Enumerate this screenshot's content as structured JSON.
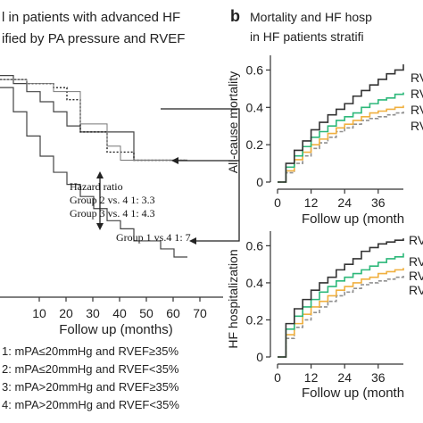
{
  "panel_a": {
    "title_line1": "l in patients with advanced HF",
    "title_line2": "ified by PA pressure and RVEF",
    "xlabel": "Follow up (months)",
    "hazard": {
      "heading": "Hazard ratio",
      "line1": "Group 2 vs. 4   1: 3.3",
      "line2": "Group 3 vs. 4   1: 4.3",
      "line3": "Group 1 vs.4   1: 7"
    },
    "legend": [
      "1: mPA≤20mmHg and RVEF≥35%",
      "2: mPA≤20mmHg and RVEF<35%",
      "3: mPA>20mmHg and RVEF≥35%",
      "4: mPA>20mmHg and RVEF<35%"
    ]
  },
  "panel_b": {
    "letter": "b",
    "title_line1": "Mortality and HF hosp",
    "title_line2": "in HF patients stratifi",
    "legend_top": [
      "RV",
      "RV",
      "RV",
      "RV"
    ],
    "legend_bottom": [
      "RV",
      "RV",
      "RV",
      "RV"
    ]
  },
  "colors": {
    "black": "#333333",
    "green": "#2db87a",
    "orange": "#f0b040",
    "gray": "#909090",
    "blue": "#1f3fbf"
  },
  "chart_data": [
    {
      "type": "line",
      "panel": "a",
      "xlabel": "Follow up (months)",
      "xlim": [
        0,
        70
      ],
      "ylim": [
        0,
        1
      ],
      "x_ticks": [
        10,
        20,
        30,
        40,
        50,
        60,
        70
      ],
      "series": [
        {
          "style": "solid",
          "x": [
            0,
            5,
            10,
            15,
            20,
            25,
            30,
            40,
            50,
            60,
            70
          ],
          "y": [
            0.9,
            0.86,
            0.82,
            0.77,
            0.72,
            0.65,
            0.62,
            0.62,
            0.48,
            0.48,
            0.48
          ]
        },
        {
          "style": "dotted",
          "x": [
            0,
            10,
            20,
            25,
            30,
            40,
            50,
            60,
            70
          ],
          "y": [
            0.88,
            0.86,
            0.84,
            0.78,
            0.62,
            0.52,
            0.48,
            0.48,
            0.48
          ]
        },
        {
          "style": "thin",
          "x": [
            0,
            10,
            20,
            30,
            40,
            45,
            50,
            60,
            70
          ],
          "y": [
            0.88,
            0.86,
            0.82,
            0.66,
            0.55,
            0.48,
            0.48,
            0.48,
            0.48
          ]
        },
        {
          "style": "solid",
          "x": [
            0,
            5,
            10,
            15,
            20,
            25,
            30,
            35,
            40,
            45,
            50,
            55,
            60,
            65,
            70
          ],
          "y": [
            0.84,
            0.72,
            0.6,
            0.5,
            0.42,
            0.36,
            0.3,
            0.24,
            0.18,
            0.14,
            0.08,
            0.08,
            0.04,
            0.0,
            0.0
          ]
        }
      ]
    },
    {
      "type": "line",
      "panel": "b-top",
      "ylabel": "All-cause mortality",
      "xlabel": "Follow up (month",
      "xlim": [
        0,
        45
      ],
      "ylim": [
        0,
        0.65
      ],
      "x_ticks": [
        0,
        12,
        24,
        36
      ],
      "y_ticks": [
        0,
        0.2,
        0.4,
        0.6
      ],
      "x": [
        0,
        3,
        6,
        9,
        12,
        15,
        18,
        21,
        24,
        27,
        30,
        33,
        36,
        39,
        42,
        45
      ],
      "series": [
        {
          "color": "#333333",
          "values": [
            0,
            0.1,
            0.17,
            0.22,
            0.28,
            0.32,
            0.36,
            0.39,
            0.42,
            0.46,
            0.49,
            0.52,
            0.55,
            0.58,
            0.6,
            0.63
          ]
        },
        {
          "color": "#2db87a",
          "values": [
            0,
            0.08,
            0.14,
            0.19,
            0.24,
            0.27,
            0.3,
            0.33,
            0.35,
            0.37,
            0.4,
            0.42,
            0.44,
            0.45,
            0.47,
            0.48
          ]
        },
        {
          "color": "#f0b040",
          "values": [
            0,
            0.06,
            0.12,
            0.16,
            0.2,
            0.23,
            0.26,
            0.29,
            0.31,
            0.33,
            0.35,
            0.37,
            0.38,
            0.39,
            0.4,
            0.41
          ]
        },
        {
          "color": "#909090",
          "values": [
            0,
            0.05,
            0.1,
            0.14,
            0.18,
            0.21,
            0.24,
            0.27,
            0.29,
            0.31,
            0.33,
            0.34,
            0.35,
            0.36,
            0.37,
            0.38
          ]
        }
      ]
    },
    {
      "type": "line",
      "panel": "b-bottom",
      "ylabel": "HF hospitalization",
      "xlabel": "Follow up (month",
      "xlim": [
        0,
        45
      ],
      "ylim": [
        0,
        0.65
      ],
      "x_ticks": [
        0,
        12,
        24,
        36
      ],
      "y_ticks": [
        0,
        0.2,
        0.4,
        0.6
      ],
      "x": [
        0,
        3,
        6,
        9,
        12,
        15,
        18,
        21,
        24,
        27,
        30,
        33,
        36,
        39,
        42,
        45
      ],
      "series": [
        {
          "color": "#333333",
          "values": [
            0,
            0.18,
            0.26,
            0.31,
            0.36,
            0.4,
            0.43,
            0.47,
            0.5,
            0.53,
            0.57,
            0.59,
            0.61,
            0.62,
            0.63,
            0.64
          ]
        },
        {
          "color": "#2db87a",
          "values": [
            0,
            0.15,
            0.22,
            0.27,
            0.31,
            0.35,
            0.38,
            0.41,
            0.43,
            0.45,
            0.47,
            0.49,
            0.51,
            0.53,
            0.54,
            0.56
          ]
        },
        {
          "color": "#f0b040",
          "values": [
            0,
            0.12,
            0.18,
            0.23,
            0.27,
            0.3,
            0.33,
            0.36,
            0.38,
            0.4,
            0.42,
            0.43,
            0.45,
            0.46,
            0.47,
            0.48
          ]
        },
        {
          "color": "#909090",
          "values": [
            0,
            0.1,
            0.16,
            0.2,
            0.24,
            0.27,
            0.3,
            0.33,
            0.35,
            0.37,
            0.39,
            0.4,
            0.41,
            0.42,
            0.43,
            0.44
          ]
        }
      ]
    }
  ]
}
